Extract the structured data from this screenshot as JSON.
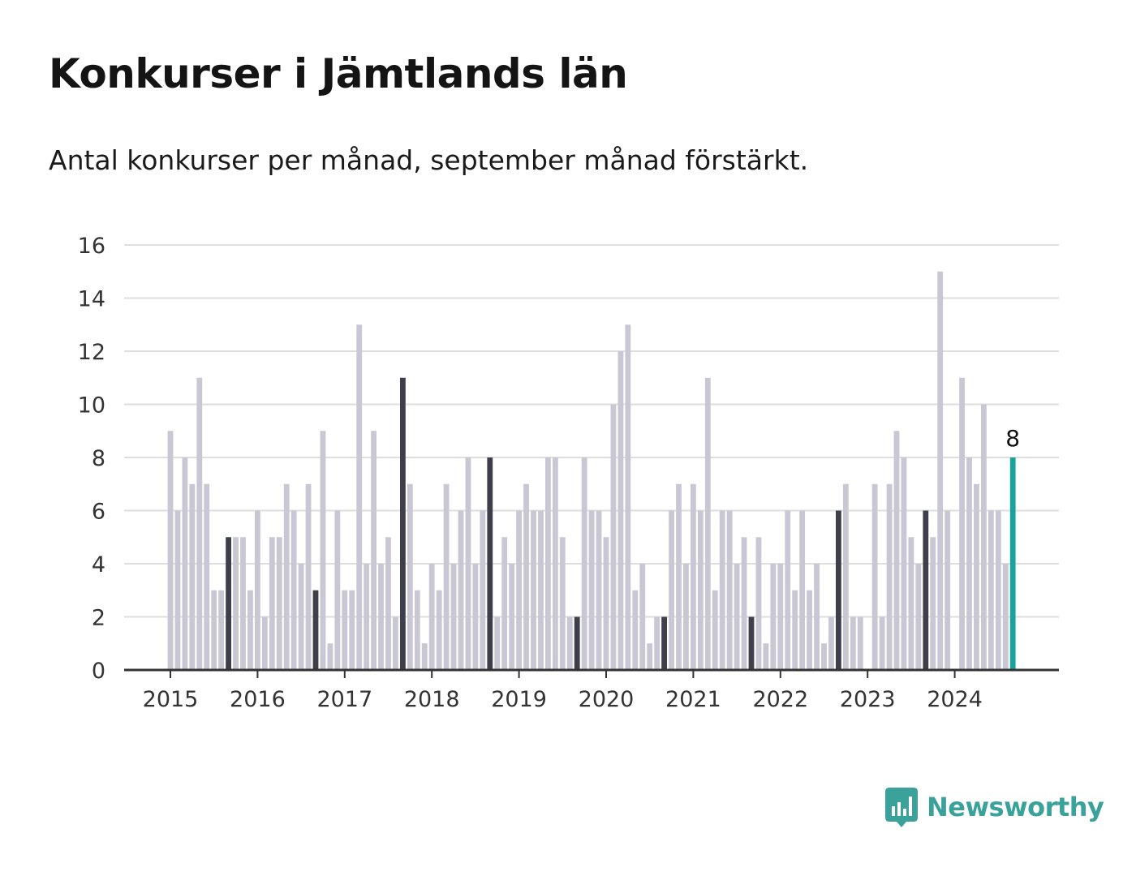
{
  "title": "Konkurser i Jämtlands län",
  "subtitle": "Antal konkurser per månad, september månad förstärkt.",
  "brand": "Newsworthy",
  "colors": {
    "bar": "#c8c7d3",
    "highlight": "#3f3f4c",
    "latest": "#1aa39a",
    "grid": "#dedede",
    "axis": "#333333",
    "brand": "#3aa29a"
  },
  "chart_data": {
    "type": "bar",
    "title": "Konkurser i Jämtlands län",
    "xlabel": "",
    "ylabel": "",
    "ylim": [
      0,
      16
    ],
    "yticks": [
      "0",
      "2",
      "4",
      "6",
      "8",
      "10",
      "12",
      "14",
      "16"
    ],
    "xticks": [
      "2015",
      "2016",
      "2017",
      "2018",
      "2019",
      "2020",
      "2021",
      "2022",
      "2023",
      "2024"
    ],
    "start": "2015-01",
    "highlight_month": "september",
    "grid": true,
    "legend": "none",
    "value_label": "8",
    "values": [
      9,
      6,
      8,
      7,
      11,
      7,
      3,
      3,
      5,
      5,
      5,
      3,
      6,
      2,
      5,
      5,
      7,
      6,
      4,
      7,
      3,
      9,
      1,
      6,
      3,
      3,
      13,
      4,
      9,
      4,
      5,
      2,
      11,
      7,
      3,
      1,
      4,
      3,
      7,
      4,
      6,
      8,
      4,
      6,
      8,
      2,
      5,
      4,
      6,
      7,
      6,
      6,
      8,
      8,
      5,
      2,
      2,
      8,
      6,
      6,
      5,
      10,
      12,
      13,
      3,
      4,
      1,
      2,
      2,
      6,
      7,
      4,
      7,
      6,
      11,
      3,
      6,
      6,
      4,
      5,
      2,
      5,
      1,
      4,
      4,
      6,
      3,
      6,
      3,
      4,
      1,
      2,
      6,
      7,
      2,
      2,
      0,
      7,
      2,
      7,
      9,
      8,
      5,
      4,
      6,
      5,
      15,
      6,
      0,
      11,
      8,
      7,
      10,
      6,
      6,
      4,
      8
    ]
  }
}
